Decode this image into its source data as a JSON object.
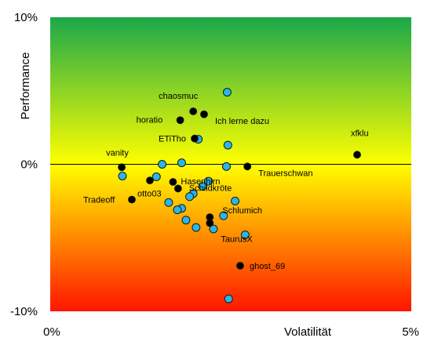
{
  "chart_data": {
    "type": "scatter",
    "title": "",
    "xlabel": "Volatilität",
    "ylabel": "Performance",
    "xlim": [
      0,
      5
    ],
    "ylim": [
      -10,
      10
    ],
    "x_ticks": [
      {
        "value": 0,
        "label": "0%"
      },
      {
        "value": 5,
        "label": "5%"
      }
    ],
    "y_ticks": [
      {
        "value": 10,
        "label": "10%"
      },
      {
        "value": 0,
        "label": "0%"
      },
      {
        "value": -10,
        "label": "-10%"
      }
    ],
    "background": "vertical gradient green (top) to yellow (zero line) to red (bottom)",
    "colors": {
      "gradient_top": "#1aa84a",
      "gradient_mid": "#ffff00",
      "gradient_bottom": "#ff1500",
      "labeled_points": "#000000",
      "other_points": "#29b6e8",
      "point_outline": "#1a1a1a"
    },
    "series": [
      {
        "marker": "black",
        "points": [
          {
            "x": 4.25,
            "y": 0.65,
            "label": "xfklu"
          },
          {
            "x": 1.98,
            "y": 3.6,
            "label": "chaosmuc"
          },
          {
            "x": 2.13,
            "y": 3.4,
            "label": "Ich lerne dazu"
          },
          {
            "x": 1.8,
            "y": 3.0,
            "label": "horatio"
          },
          {
            "x": 2.0,
            "y": 1.75,
            "label": "ETiTho"
          },
          {
            "x": 0.99,
            "y": -0.2,
            "label": "vanity"
          },
          {
            "x": 2.73,
            "y": -0.15,
            "label": "Trauerschwan"
          },
          {
            "x": 1.7,
            "y": -1.2,
            "label": "Hasenhirn"
          },
          {
            "x": 1.38,
            "y": -1.1,
            "label": ""
          },
          {
            "x": 1.77,
            "y": -1.65,
            "label": "Schildkröte"
          },
          {
            "x": 1.13,
            "y": -2.4,
            "label": "Tradeoff"
          },
          {
            "x": 2.21,
            "y": -3.6,
            "label": "Schlumich"
          },
          {
            "x": 2.21,
            "y": -4.0,
            "label": "TaurusX"
          },
          {
            "x": 2.63,
            "y": -6.9,
            "label": "ghost_69"
          }
        ]
      },
      {
        "marker": "blue",
        "points": [
          {
            "x": 2.45,
            "y": 4.9
          },
          {
            "x": 2.46,
            "y": 1.3
          },
          {
            "x": 2.05,
            "y": 1.7
          },
          {
            "x": 1.0,
            "y": -0.8
          },
          {
            "x": 1.47,
            "y": -0.85
          },
          {
            "x": 1.55,
            "y": 0.0
          },
          {
            "x": 1.82,
            "y": 0.1
          },
          {
            "x": 2.44,
            "y": -0.15
          },
          {
            "x": 2.19,
            "y": -1.15
          },
          {
            "x": 2.11,
            "y": -1.5
          },
          {
            "x": 1.98,
            "y": -2.0
          },
          {
            "x": 1.93,
            "y": -2.2
          },
          {
            "x": 1.64,
            "y": -2.6
          },
          {
            "x": 1.82,
            "y": -3.0
          },
          {
            "x": 1.76,
            "y": -3.1
          },
          {
            "x": 2.56,
            "y": -2.5
          },
          {
            "x": 2.4,
            "y": -3.5
          },
          {
            "x": 1.88,
            "y": -3.8
          },
          {
            "x": 2.02,
            "y": -4.3
          },
          {
            "x": 2.26,
            "y": -4.4
          },
          {
            "x": 2.7,
            "y": -4.8
          },
          {
            "x": 2.47,
            "y": -9.15
          },
          {
            "x": 1.2,
            "y": -7.0,
            "hidden": true
          }
        ]
      }
    ]
  },
  "point_label_offsets": {
    "xfklu": [
      -8,
      -24
    ],
    "chaosmuc": [
      -44,
      -16
    ],
    "Ich lerne dazu": [
      14,
      12
    ],
    "horatio": [
      -56,
      3
    ],
    "ETiTho": [
      -46,
      4
    ],
    "vanity": [
      -20,
      -15
    ],
    "Trauerschwan": [
      14,
      12
    ],
    "Hasenhirn": [
      10,
      3
    ],
    "Schildkröte": [
      14,
      3
    ],
    "Tradeoff": [
      -62,
      4
    ],
    "Schlumich": [
      16,
      -5
    ],
    "TaurusX": [
      14,
      24
    ],
    "ghost_69": [
      12,
      4
    ]
  },
  "extra_labels": [
    {
      "text": "otto03",
      "x": 1.75,
      "y": -1.65,
      "dx": -50,
      "dy": 10
    }
  ]
}
